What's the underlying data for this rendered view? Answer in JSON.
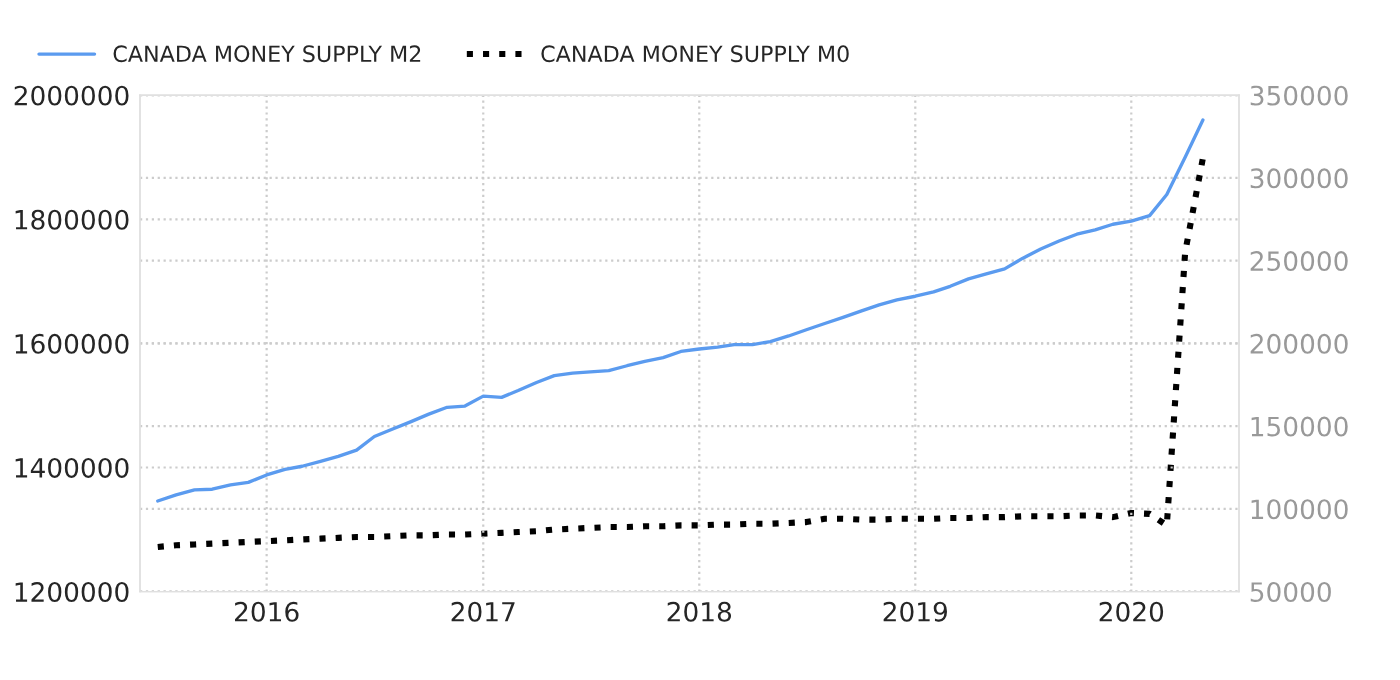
{
  "chart_data": {
    "type": "line",
    "x": [
      "2015-07",
      "2015-08",
      "2015-09",
      "2015-10",
      "2015-11",
      "2015-12",
      "2016-01",
      "2016-02",
      "2016-03",
      "2016-04",
      "2016-05",
      "2016-06",
      "2016-07",
      "2016-08",
      "2016-09",
      "2016-10",
      "2016-11",
      "2016-12",
      "2017-01",
      "2017-02",
      "2017-03",
      "2017-04",
      "2017-05",
      "2017-06",
      "2017-07",
      "2017-08",
      "2017-09",
      "2017-10",
      "2017-11",
      "2017-12",
      "2018-01",
      "2018-02",
      "2018-03",
      "2018-04",
      "2018-05",
      "2018-06",
      "2018-07",
      "2018-08",
      "2018-09",
      "2018-10",
      "2018-11",
      "2018-12",
      "2019-01",
      "2019-02",
      "2019-03",
      "2019-04",
      "2019-05",
      "2019-06",
      "2019-07",
      "2019-08",
      "2019-09",
      "2019-10",
      "2019-11",
      "2019-12",
      "2020-01",
      "2020-02",
      "2020-03",
      "2020-04",
      "2020-05"
    ],
    "series": [
      {
        "name": "CANADA MONEY SUPPLY M2",
        "color": "#5b9bef",
        "line_style": "solid",
        "values": [
          1346000,
          1356000,
          1364000,
          1365000,
          1372000,
          1376000,
          1388000,
          1397000,
          1402000,
          1410000,
          1418000,
          1428000,
          1450000,
          1462000,
          1474000,
          1486000,
          1497000,
          1499000,
          1515000,
          1513000,
          1524000,
          1537000,
          1548000,
          1552000,
          1554000,
          1556000,
          1564000,
          1571000,
          1577000,
          1587000,
          1591000,
          1594000,
          1598000,
          1598000,
          1603000,
          1612000,
          1622000,
          1632000,
          1642000,
          1652000,
          1662000,
          1670000,
          1676000,
          1683000,
          1692000,
          1704000,
          1712000,
          1720000,
          1737000,
          1752000,
          1765000,
          1776000,
          1783000,
          1792000,
          1797000,
          1806000,
          1840000,
          1900000,
          1960000
        ]
      },
      {
        "name": "CANADA MONEY SUPPLY M0",
        "color": "#000000",
        "line_style": "dotted",
        "axis": "y2",
        "values": [
          77000,
          78000,
          78500,
          79000,
          79500,
          80000,
          80500,
          81000,
          81500,
          82000,
          82500,
          83000,
          83000,
          83500,
          84000,
          84000,
          84500,
          84500,
          85000,
          85500,
          86000,
          86500,
          87500,
          88000,
          88500,
          89000,
          89000,
          89500,
          89500,
          90000,
          90000,
          90500,
          90500,
          91000,
          91000,
          91500,
          92000,
          94000,
          94000,
          93500,
          93500,
          94000,
          94000,
          94000,
          94500,
          94500,
          95000,
          95000,
          95500,
          95500,
          95500,
          96000,
          96000,
          95000,
          97500,
          97000,
          90000,
          255000,
          312000
        ]
      }
    ],
    "xlim": [
      "2015-06",
      "2020-07"
    ],
    "xticks": [
      {
        "value": "2016-01",
        "label": "2016"
      },
      {
        "value": "2017-01",
        "label": "2017"
      },
      {
        "value": "2018-01",
        "label": "2018"
      },
      {
        "value": "2019-01",
        "label": "2019"
      },
      {
        "value": "2020-01",
        "label": "2020"
      }
    ],
    "ylim": [
      1200000,
      2000000
    ],
    "yticks": [
      1200000,
      1400000,
      1600000,
      1800000,
      2000000
    ],
    "y2lim": [
      50000,
      350000
    ],
    "y2ticks": [
      50000,
      100000,
      150000,
      200000,
      250000,
      300000,
      350000
    ],
    "grid": true,
    "legend": "top left"
  }
}
